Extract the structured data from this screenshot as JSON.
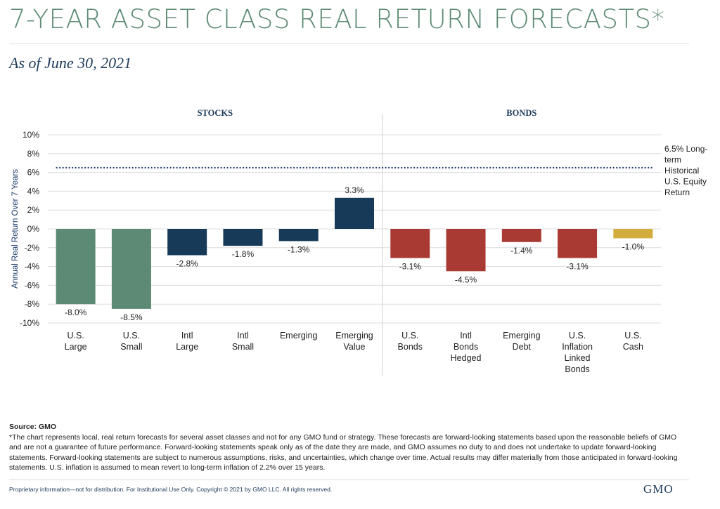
{
  "header": {
    "title": "7-YEAR ASSET CLASS REAL RETURN FORECASTS*",
    "subtitle": "As of June 30, 2021"
  },
  "chart_data": {
    "type": "bar",
    "ylabel": "Annual Real Return Over 7 Years",
    "ylim": [
      -10,
      10
    ],
    "yticks": [
      10,
      8,
      6,
      4,
      2,
      0,
      -2,
      -4,
      -6,
      -8,
      -10
    ],
    "ytick_labels": [
      "10%",
      "8%",
      "6%",
      "4%",
      "2%",
      "0%",
      "-2%",
      "-4%",
      "-6%",
      "-8%",
      "-10%"
    ],
    "grid": true,
    "groups": [
      {
        "label": "STOCKS",
        "start": 0,
        "end": 5
      },
      {
        "label": "BONDS",
        "start": 6,
        "end": 10
      }
    ],
    "categories": [
      [
        "U.S.",
        "Large"
      ],
      [
        "U.S.",
        "Small"
      ],
      [
        "Intl",
        "Large"
      ],
      [
        "Intl",
        "Small"
      ],
      [
        "Emerging"
      ],
      [
        "Emerging",
        "Value"
      ],
      [
        "U.S.",
        "Bonds"
      ],
      [
        "Intl",
        "Bonds",
        "Hedged"
      ],
      [
        "Emerging",
        "Debt"
      ],
      [
        "U.S.",
        "Inflation",
        "Linked",
        "Bonds"
      ],
      [
        "U.S.",
        "Cash"
      ]
    ],
    "values": [
      -8.0,
      -8.5,
      -2.8,
      -1.8,
      -1.3,
      3.3,
      -3.1,
      -4.5,
      -1.4,
      -3.1,
      -1.0
    ],
    "value_labels": [
      "-8.0%",
      "-8.5%",
      "-2.8%",
      "-1.8%",
      "-1.3%",
      "3.3%",
      "-3.1%",
      "-4.5%",
      "-1.4%",
      "-3.1%",
      "-1.0%"
    ],
    "bar_colors": [
      "#5c8a74",
      "#5c8a74",
      "#163a57",
      "#163a57",
      "#163a57",
      "#163a57",
      "#a93a33",
      "#a93a33",
      "#a93a33",
      "#a93a33",
      "#d2ac3c"
    ],
    "reference_line": {
      "value": 6.5,
      "label": [
        "6.5% Long-",
        "term",
        "Historical",
        "U.S. Equity",
        "Return"
      ],
      "color": "#1d3a6a"
    }
  },
  "footer": {
    "source_label": "Source: GMO",
    "disclaimer": "*The chart represents local, real return forecasts for several asset classes and not for any GMO fund or strategy. These forecasts are forward-looking statements based upon the reasonable beliefs of GMO and are not a guarantee of future performance. Forward-looking statements speak only as of the date they are made, and GMO assumes no duty to and does not undertake to update forward-looking statements. Forward-looking statements are subject to numerous assumptions, risks, and uncertainties, which change over time. Actual results may differ materially from those anticipated in forward-looking statements. U.S. inflation is assumed to mean revert to long-term inflation of 2.2% over 15 years.",
    "proprietary": "Proprietary information—not for distribution. For Institutional Use Only. Copyright © 2021 by GMO LLC. All rights reserved.",
    "logo": "GMO"
  }
}
